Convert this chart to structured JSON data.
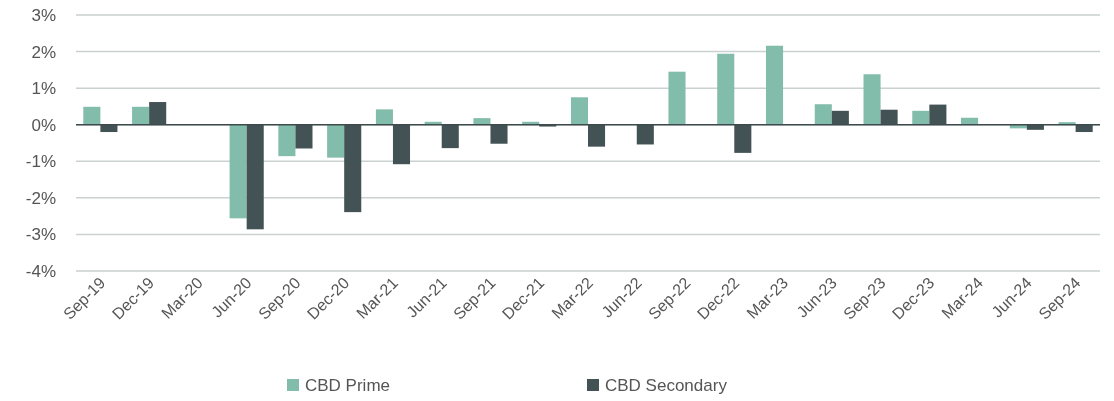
{
  "chart_data": {
    "type": "bar",
    "categories": [
      "Sep-19",
      "Dec-19",
      "Mar-20",
      "Jun-20",
      "Sep-20",
      "Dec-20",
      "Mar-21",
      "Jun-21",
      "Sep-21",
      "Dec-21",
      "Mar-22",
      "Jun-22",
      "Sep-22",
      "Dec-22",
      "Mar-23",
      "Jun-23",
      "Sep-23",
      "Dec-23",
      "Mar-24",
      "Jun-24",
      "Sep-24"
    ],
    "series": [
      {
        "name": "CBD Prime",
        "color": "#82bcab",
        "values": [
          0.49,
          0.49,
          0,
          -2.56,
          -0.86,
          -0.9,
          0.42,
          0.08,
          0.18,
          0.08,
          0.75,
          0,
          1.45,
          1.94,
          2.16,
          0.56,
          1.38,
          0.38,
          0.19,
          -0.1,
          0.07
        ]
      },
      {
        "name": "CBD Secondary",
        "color": "#435254",
        "values": [
          -0.2,
          0.62,
          0,
          -2.86,
          -0.65,
          -2.39,
          -1.08,
          -0.64,
          -0.52,
          -0.05,
          -0.6,
          -0.54,
          0,
          -0.77,
          0,
          0.38,
          0.41,
          0.55,
          0,
          -0.14,
          -0.2
        ]
      }
    ],
    "ylim": [
      -4,
      3
    ],
    "yticks": [
      {
        "value": -4,
        "label": "-4%"
      },
      {
        "value": -3,
        "label": "-3%"
      },
      {
        "value": -2,
        "label": "-2%"
      },
      {
        "value": -1,
        "label": "-1%"
      },
      {
        "value": 0,
        "label": "0%"
      },
      {
        "value": 1,
        "label": "1%"
      },
      {
        "value": 2,
        "label": "2%"
      },
      {
        "value": 3,
        "label": "3%"
      }
    ],
    "grid": "y",
    "legend": "bottom"
  }
}
